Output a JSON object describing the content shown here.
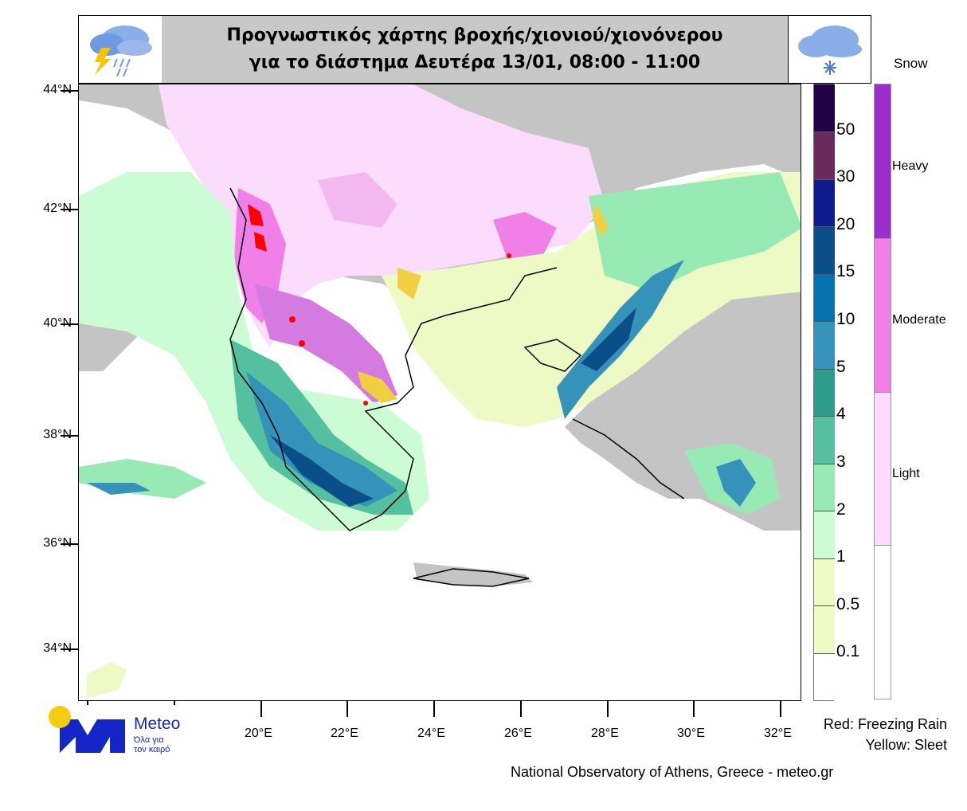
{
  "header": {
    "title_line1": "Προγνωστικός χάρτης βροχής/χιονιού/χιονόνερου",
    "title_line2": "για το διάστημα Δευτέρα 13/01, 08:00 - 11:00",
    "left_icon": "thunderstorm-rain-cloud-icon",
    "right_icon": "snow-cloud-icon"
  },
  "map": {
    "lat_labels": [
      "44°N",
      "42°N",
      "40°N",
      "38°N",
      "36°N",
      "34°N"
    ],
    "lon_labels": [
      "20°E",
      "22°E",
      "24°E",
      "26°E",
      "28°E",
      "30°E",
      "32°E"
    ],
    "colors": {
      "land_no_precip": "#c4c4c4",
      "sea": "#ffffff",
      "freezing_rain": "#ff0000",
      "sleet": "#f0d040"
    }
  },
  "precip_colorbar": {
    "labels": [
      "50",
      "30",
      "20",
      "15",
      "10",
      "5",
      "4",
      "3",
      "2",
      "1",
      "0.5",
      "0.1"
    ],
    "colors": [
      "#230046",
      "#6a2a5e",
      "#0d1b8e",
      "#0a4f8a",
      "#0672b0",
      "#3592b8",
      "#2e9c8a",
      "#55c0a0",
      "#98eab4",
      "#ccfcd4",
      "#eefac4",
      "#eefac4",
      "#ffffff"
    ]
  },
  "snow_colorbar": {
    "title": "Snow",
    "labels": [
      "Heavy",
      "Moderate",
      "Light"
    ],
    "colors": [
      "#9c2fcc",
      "#f080e8",
      "#fcdcfc",
      "#ffffff"
    ]
  },
  "legend_notes": {
    "freezing_rain": "Red: Freezing Rain",
    "sleet": "Yellow: Sleet"
  },
  "logo": {
    "name": "Meteo",
    "tagline1": "Όλα για",
    "tagline2": "τον καιρό"
  },
  "credit": "National Observatory of Athens, Greece - meteo.gr"
}
